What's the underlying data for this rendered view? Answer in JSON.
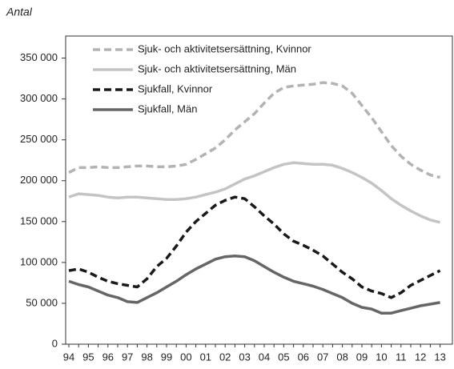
{
  "chart_data": {
    "type": "line",
    "y_label": "Antal",
    "categories": [
      "94",
      null,
      "95",
      null,
      "96",
      null,
      "97",
      null,
      "98",
      null,
      "99",
      null,
      "00",
      null,
      "01",
      null,
      "02",
      null,
      "03",
      null,
      "04",
      null,
      "05",
      null,
      "06",
      null,
      "07",
      null,
      "08",
      null,
      "09",
      null,
      "10",
      null,
      "11",
      null,
      "12",
      null,
      "13"
    ],
    "ylim": [
      0,
      377000
    ],
    "yticks": [
      0,
      {
        "value": 50000,
        "label": "50 000"
      },
      {
        "value": 100000,
        "label": "100 000"
      },
      {
        "value": 150000,
        "label": "150 000"
      },
      {
        "value": 200000,
        "label": "200 000"
      },
      {
        "value": 250000,
        "label": "250 000"
      },
      {
        "value": 300000,
        "label": "300 000"
      },
      {
        "value": 350000,
        "label": "350 000"
      }
    ],
    "legend": "upper left",
    "series": [
      {
        "name": "Sjuk- och aktivitetsersättning, Kvinnor",
        "color": "#b3b3b3",
        "style": "dashed",
        "values": [
          210000,
          216000,
          216000,
          217000,
          216000,
          216000,
          217000,
          218000,
          218000,
          217000,
          217000,
          218000,
          220000,
          226000,
          233000,
          240000,
          250000,
          262000,
          272000,
          282000,
          295000,
          307000,
          314000,
          316000,
          317000,
          318000,
          320000,
          319000,
          316000,
          307000,
          292000,
          277000,
          260000,
          243000,
          230000,
          220000,
          213000,
          207000,
          204000
        ]
      },
      {
        "name": "Sjuk- och aktivitetsersättning, Män",
        "color": "#c4c4c4",
        "style": "solid",
        "values": [
          180000,
          184000,
          183000,
          182000,
          180000,
          179000,
          180000,
          180000,
          179000,
          178000,
          177000,
          177000,
          178000,
          180000,
          183000,
          186000,
          190000,
          196000,
          202000,
          206000,
          211000,
          216000,
          220000,
          222000,
          221000,
          220000,
          220000,
          219000,
          215000,
          210000,
          204000,
          197000,
          188000,
          178000,
          170000,
          163000,
          157000,
          152000,
          149000
        ]
      },
      {
        "name": "Sjukfall, Kvinnor",
        "color": "#1a1a1a",
        "style": "dashed",
        "values": [
          90000,
          92000,
          88000,
          82000,
          77000,
          74000,
          72000,
          70000,
          80000,
          95000,
          105000,
          120000,
          137000,
          150000,
          160000,
          170000,
          176000,
          180000,
          178000,
          168000,
          157000,
          147000,
          135000,
          126000,
          121000,
          115000,
          108000,
          98000,
          88000,
          80000,
          70000,
          65000,
          62000,
          57000,
          63000,
          72000,
          78000,
          84000,
          90000
        ]
      },
      {
        "name": "Sjukfall, Män",
        "color": "#666666",
        "style": "solid",
        "values": [
          77000,
          73000,
          70000,
          65000,
          60000,
          57000,
          52000,
          51000,
          57000,
          63000,
          70000,
          77000,
          85000,
          92000,
          98000,
          104000,
          107000,
          108000,
          107000,
          102000,
          95000,
          88000,
          82000,
          77000,
          74000,
          71000,
          67000,
          62000,
          57000,
          50000,
          45000,
          43000,
          38000,
          38000,
          41000,
          44000,
          47000,
          49000,
          51000
        ]
      }
    ]
  }
}
